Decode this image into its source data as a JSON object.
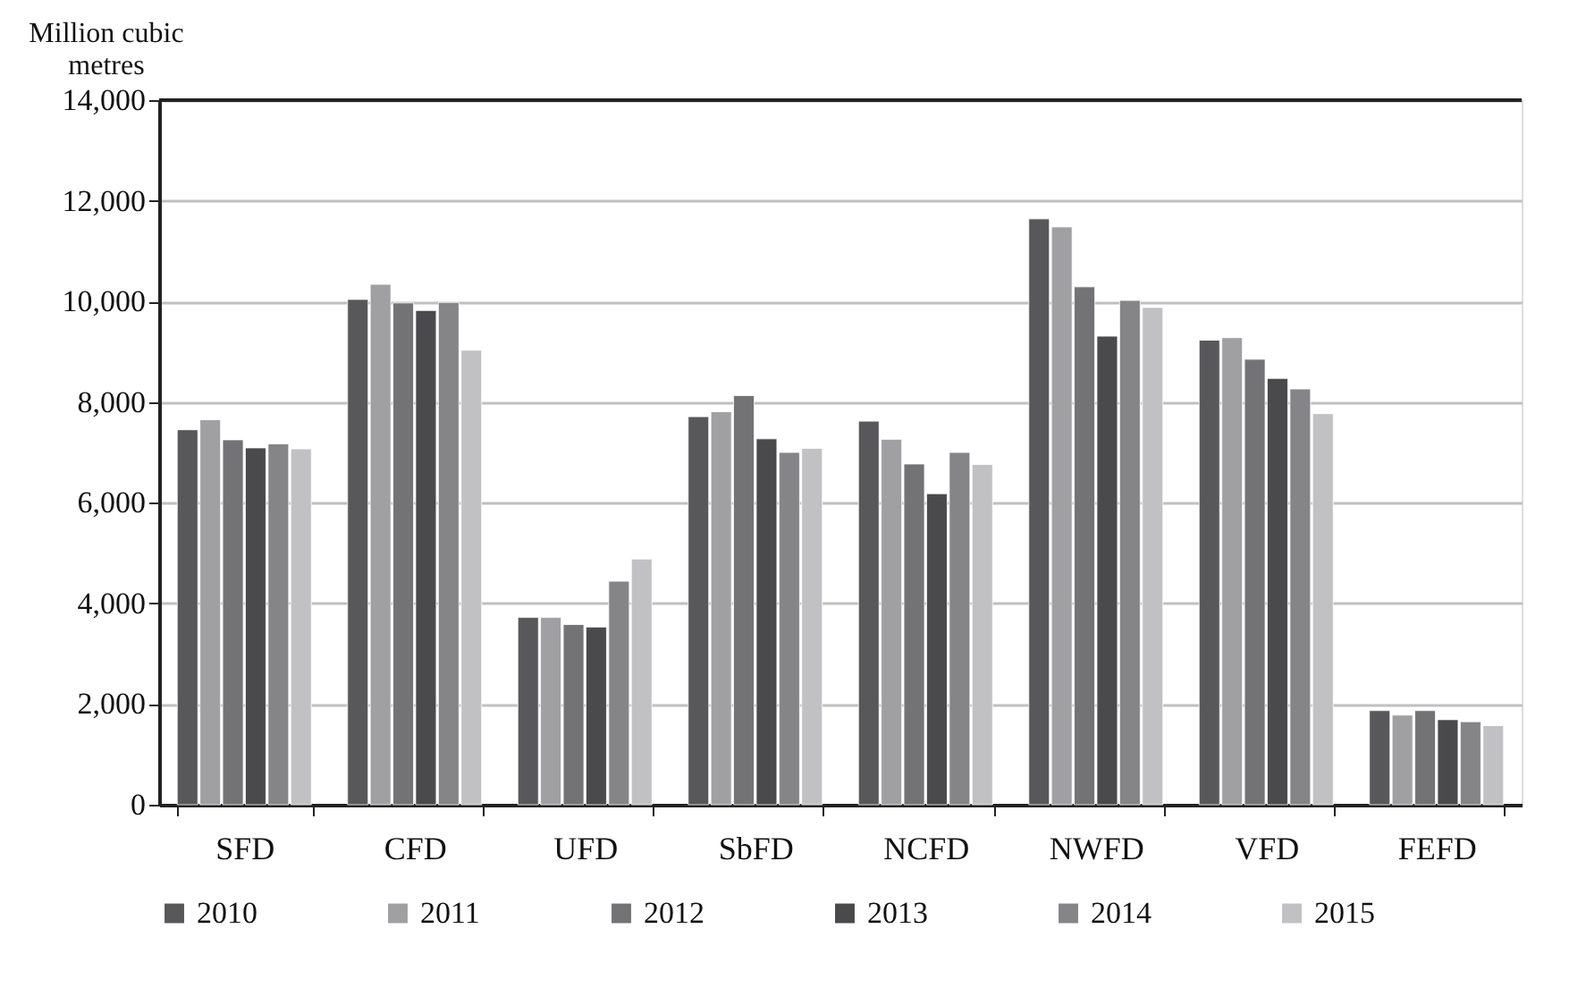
{
  "chart_data": {
    "type": "bar",
    "ylabel": "Million cubic metres",
    "categories": [
      "SFD",
      "CFD",
      "UFD",
      "SbFD",
      "NCFD",
      "NWFD",
      "VFD",
      "FEFD"
    ],
    "series": [
      {
        "name": "2010",
        "color": "#58585a",
        "values": [
          7450,
          10040,
          3720,
          7710,
          7620,
          11640,
          9230,
          1870
        ]
      },
      {
        "name": "2011",
        "color": "#a0a0a3",
        "values": [
          7650,
          10340,
          3720,
          7810,
          7260,
          11480,
          9280,
          1780
        ]
      },
      {
        "name": "2012",
        "color": "#737376",
        "values": [
          7250,
          9970,
          3580,
          8130,
          6770,
          10290,
          8850,
          1870
        ]
      },
      {
        "name": "2013",
        "color": "#4a4a4c",
        "values": [
          7090,
          9820,
          3530,
          7270,
          6180,
          9310,
          8470,
          1690
        ]
      },
      {
        "name": "2014",
        "color": "#858588",
        "values": [
          7170,
          9980,
          4440,
          7000,
          7000,
          10020,
          8260,
          1650
        ]
      },
      {
        "name": "2015",
        "color": "#c1c1c3",
        "values": [
          7070,
          9030,
          4880,
          7080,
          6760,
          9880,
          7770,
          1570
        ]
      }
    ],
    "ylim": [
      0,
      14000
    ],
    "yticks": [
      {
        "value": 0,
        "label": "0"
      },
      {
        "value": 2000,
        "label": "2,000"
      },
      {
        "value": 4000,
        "label": "4,000"
      },
      {
        "value": 6000,
        "label": "6,000"
      },
      {
        "value": 8000,
        "label": "8,000"
      },
      {
        "value": 10000,
        "label": "10,000"
      },
      {
        "value": 12000,
        "label": "12,000"
      },
      {
        "value": 14000,
        "label": "14,000"
      }
    ],
    "grid": "y",
    "legend": "bottom"
  }
}
